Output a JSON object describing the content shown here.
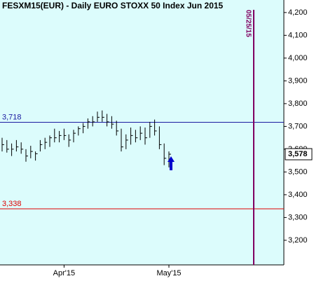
{
  "chart_data": {
    "type": "ohlc",
    "title": "FESXM15(EUR) - Daily  EURO STOXX 50 Index Jun 2015",
    "categories": [
      null,
      null,
      null,
      null,
      null,
      null,
      null,
      null,
      null,
      null,
      null,
      null,
      null,
      "Apr'15",
      null,
      null,
      null,
      null,
      null,
      null,
      null,
      null,
      null,
      null,
      null,
      null,
      null,
      null,
      null,
      null,
      null,
      null,
      null,
      null,
      null,
      "May'15"
    ],
    "high": [
      3650,
      3640,
      3625,
      3640,
      3630,
      3600,
      3615,
      3590,
      3640,
      3650,
      3660,
      3690,
      3680,
      3690,
      3665,
      3685,
      3700,
      3715,
      3735,
      3745,
      3765,
      3770,
      3755,
      3745,
      3725,
      3690,
      3665,
      3695,
      3685,
      3700,
      3695,
      3720,
      3730,
      3700,
      3625,
      3590
    ],
    "low": [
      3590,
      3585,
      3570,
      3590,
      3580,
      3545,
      3560,
      3550,
      3590,
      3600,
      3610,
      3630,
      3630,
      3640,
      3610,
      3630,
      3660,
      3670,
      3690,
      3700,
      3720,
      3720,
      3700,
      3690,
      3660,
      3590,
      3600,
      3620,
      3630,
      3640,
      3620,
      3650,
      3660,
      3600,
      3530,
      3520
    ],
    "close": [
      3620,
      3600,
      3600,
      3610,
      3600,
      3570,
      3590,
      3580,
      3620,
      3630,
      3650,
      3650,
      3660,
      3660,
      3640,
      3670,
      3690,
      3700,
      3720,
      3720,
      3740,
      3740,
      3720,
      3710,
      3680,
      3610,
      3640,
      3660,
      3650,
      3670,
      3650,
      3700,
      3680,
      3620,
      3560,
      3578
    ],
    "color": "#000000",
    "ylim": [
      3092,
      4255
    ],
    "yticks": [
      {
        "value": 3200,
        "label": "3,200"
      },
      {
        "value": 3300,
        "label": "3,300"
      },
      {
        "value": 3400,
        "label": "3,400"
      },
      {
        "value": 3500,
        "label": "3,500"
      },
      {
        "value": 3600,
        "label": "3,600"
      },
      {
        "value": 3700,
        "label": "3,700"
      },
      {
        "value": 3800,
        "label": "3,800"
      },
      {
        "value": 3900,
        "label": "3,900"
      },
      {
        "value": 4000,
        "label": "4,000"
      },
      {
        "value": 4100,
        "label": "4,100"
      },
      {
        "value": 4200,
        "label": "4,200"
      }
    ],
    "levels": [
      {
        "value": 3718,
        "label": "3,718",
        "color": "#1a1aa0"
      },
      {
        "value": 3338,
        "label": "3,338",
        "color": "#e00000"
      }
    ],
    "last_price": {
      "value": 3578,
      "label": "3,578"
    },
    "expiry_label": "05/25/15",
    "expiry_color": "#800060"
  }
}
